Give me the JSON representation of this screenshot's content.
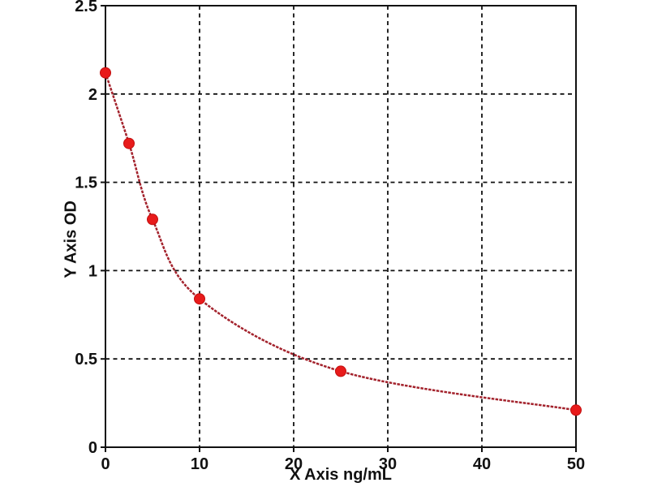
{
  "chart_data": {
    "type": "line",
    "description": "ELISA-style standard curve, decreasing OD vs concentration",
    "x": [
      0,
      2.5,
      5,
      10,
      25,
      50
    ],
    "y": [
      2.12,
      1.72,
      1.29,
      0.84,
      0.43,
      0.21
    ],
    "title": "",
    "xlabel": "X Axis ng/mL",
    "ylabel": "Y Axis OD",
    "xlim": [
      0,
      50
    ],
    "ylim": [
      0,
      2.5
    ],
    "xticks": [
      0,
      10,
      20,
      30,
      40,
      50
    ],
    "yticks": [
      0,
      0.5,
      1,
      1.5,
      2,
      2.5
    ],
    "xtick_labels": [
      "0",
      "10",
      "20",
      "30",
      "40",
      "50"
    ],
    "ytick_labels": [
      "0",
      "0.5",
      "1",
      "1.5",
      "2",
      "2.5"
    ],
    "grid": "dashed-both-axes",
    "legend": "none",
    "marker": "filled-circle",
    "colors": {
      "curve_line": "#a3222c",
      "marker_fill": "#e81b1b",
      "marker_edge": "#c20f0f",
      "axis_and_grid": "#111111",
      "plot_background": "#ffffff"
    }
  }
}
